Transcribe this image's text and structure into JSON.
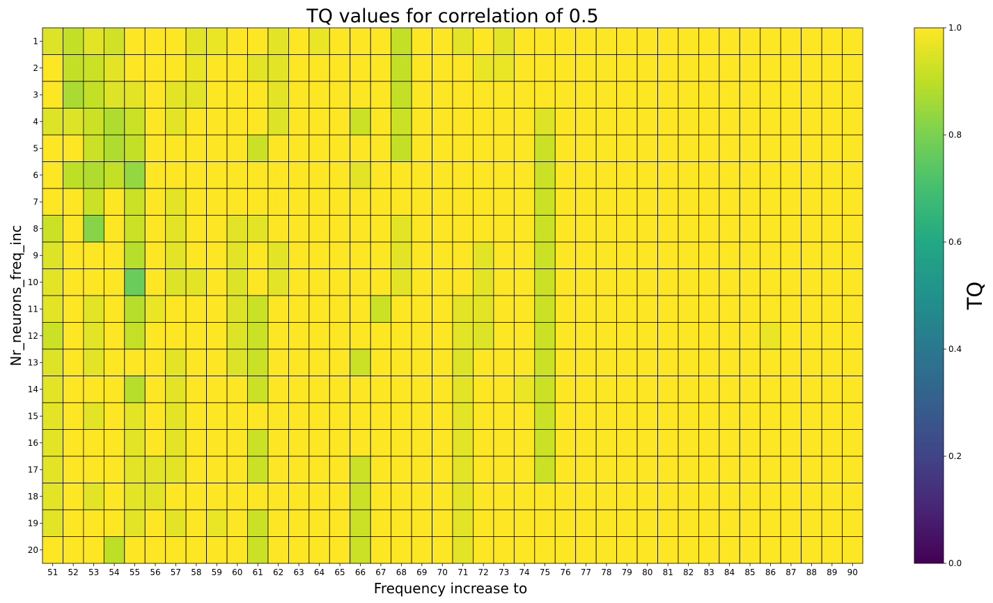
{
  "chart_data": {
    "type": "heatmap",
    "title": "TQ values for correlation of 0.5",
    "xlabel": "Frequency increase to",
    "ylabel": "Nr_neurons_freq_inc",
    "colorbar_label": "TQ",
    "colormap": "viridis",
    "vmin": 0.0,
    "vmax": 1.0,
    "colorbar_ticks": [
      "0.0",
      "0.2",
      "0.4",
      "0.6",
      "0.8",
      "1.0"
    ],
    "x_categories": [
      "51",
      "52",
      "53",
      "54",
      "55",
      "56",
      "57",
      "58",
      "59",
      "60",
      "61",
      "62",
      "63",
      "64",
      "65",
      "66",
      "67",
      "68",
      "69",
      "70",
      "71",
      "72",
      "73",
      "74",
      "75",
      "76",
      "77",
      "78",
      "79",
      "80",
      "81",
      "82",
      "83",
      "84",
      "85",
      "86",
      "87",
      "88",
      "89",
      "90"
    ],
    "y_categories": [
      "1",
      "2",
      "3",
      "4",
      "5",
      "6",
      "7",
      "8",
      "9",
      "10",
      "11",
      "12",
      "13",
      "14",
      "15",
      "16",
      "17",
      "18",
      "19",
      "20"
    ],
    "values": [
      [
        0.95,
        0.91,
        0.96,
        0.93,
        1,
        1,
        1,
        0.96,
        0.97,
        1,
        1,
        0.96,
        1,
        0.97,
        1,
        1,
        1,
        0.91,
        1,
        1,
        0.96,
        1,
        0.96,
        1,
        1,
        1,
        1,
        1,
        1,
        1,
        1,
        1,
        1,
        1,
        1,
        1,
        1,
        1,
        1,
        1
      ],
      [
        1,
        0.91,
        0.92,
        0.96,
        1,
        1,
        1,
        0.97,
        1,
        1,
        0.96,
        0.96,
        1,
        1,
        1,
        1,
        1,
        0.91,
        1,
        1,
        1,
        0.97,
        0.97,
        1,
        1,
        1,
        1,
        1,
        1,
        1,
        1,
        1,
        1,
        1,
        1,
        1,
        1,
        1,
        1,
        1
      ],
      [
        1,
        0.87,
        0.91,
        0.95,
        0.96,
        1,
        0.96,
        0.96,
        1,
        1,
        1,
        0.96,
        1,
        1,
        1,
        1,
        1,
        0.91,
        1,
        1,
        1,
        1,
        1,
        1,
        1,
        1,
        1,
        1,
        1,
        1,
        1,
        1,
        1,
        1,
        1,
        1,
        1,
        1,
        1,
        1
      ],
      [
        0.95,
        0.95,
        0.92,
        0.88,
        0.92,
        1,
        0.96,
        1,
        1,
        1,
        1,
        0.95,
        1,
        1,
        1,
        0.92,
        1,
        0.92,
        1,
        1,
        1,
        1,
        1,
        1,
        0.95,
        1,
        1,
        1,
        1,
        1,
        1,
        1,
        1,
        1,
        1,
        1,
        1,
        1,
        1,
        1
      ],
      [
        1,
        1,
        0.92,
        0.88,
        0.91,
        1,
        1,
        1,
        1,
        1,
        0.92,
        1,
        1,
        1,
        1,
        1,
        1,
        0.91,
        1,
        1,
        1,
        1,
        1,
        1,
        0.92,
        1,
        1,
        1,
        1,
        1,
        1,
        1,
        1,
        1,
        1,
        1,
        1,
        1,
        1,
        1
      ],
      [
        1,
        0.9,
        0.88,
        0.91,
        0.84,
        1,
        1,
        1,
        1,
        1,
        1,
        1,
        1,
        1,
        1,
        0.96,
        1,
        1,
        1,
        1,
        1,
        1,
        1,
        1,
        0.92,
        1,
        1,
        1,
        1,
        1,
        1,
        1,
        1,
        1,
        1,
        1,
        1,
        1,
        1,
        1
      ],
      [
        1,
        1,
        0.92,
        1,
        0.92,
        1,
        0.96,
        1,
        1,
        1,
        1,
        1,
        1,
        1,
        1,
        1,
        1,
        1,
        1,
        1,
        1,
        1,
        1,
        1,
        0.92,
        1,
        1,
        1,
        1,
        1,
        1,
        1,
        1,
        1,
        1,
        1,
        1,
        1,
        1,
        1
      ],
      [
        0.92,
        1,
        0.82,
        1,
        0.92,
        1,
        0.96,
        1,
        1,
        0.96,
        0.96,
        1,
        1,
        1,
        1,
        1,
        1,
        0.96,
        1,
        1,
        1,
        1,
        1,
        1,
        0.92,
        1,
        1,
        1,
        1,
        1,
        1,
        1,
        1,
        1,
        1,
        1,
        1,
        1,
        1,
        1
      ],
      [
        0.95,
        1,
        1,
        1,
        0.89,
        1,
        0.96,
        1,
        1,
        0.96,
        1,
        0.96,
        1,
        1,
        1,
        1,
        1,
        0.96,
        1,
        1,
        1,
        0.96,
        1,
        1,
        0.92,
        1,
        1,
        1,
        1,
        1,
        1,
        1,
        1,
        1,
        1,
        1,
        1,
        1,
        1,
        1
      ],
      [
        0.96,
        1,
        1,
        1,
        0.77,
        1,
        0.95,
        0.96,
        1,
        0.95,
        1,
        0.96,
        1,
        1,
        1,
        1,
        1,
        0.96,
        1,
        1,
        1,
        0.96,
        1,
        1,
        0.92,
        1,
        1,
        1,
        1,
        1,
        1,
        1,
        1,
        1,
        1,
        1,
        1,
        1,
        1,
        1
      ],
      [
        0.96,
        1,
        0.96,
        1,
        0.89,
        0.97,
        1,
        1,
        1,
        0.95,
        0.92,
        1,
        1,
        1,
        1,
        1,
        0.92,
        1,
        1,
        1,
        0.96,
        0.96,
        1,
        1,
        0.92,
        1,
        1,
        1,
        1,
        1,
        1,
        1,
        1,
        1,
        1,
        1,
        1,
        1,
        1,
        1
      ],
      [
        0.92,
        1,
        0.96,
        1,
        0.91,
        1,
        1,
        1,
        1,
        0.95,
        0.92,
        1,
        1,
        1,
        1,
        1,
        1,
        1,
        1,
        1,
        0.96,
        0.95,
        1,
        1,
        0.92,
        1,
        1,
        1,
        1,
        1,
        1,
        1,
        1,
        1,
        1,
        0.97,
        1,
        1,
        1,
        1
      ],
      [
        0.95,
        1,
        0.96,
        1,
        1,
        1,
        0.96,
        1,
        1,
        0.95,
        0.92,
        1,
        1,
        1,
        1,
        0.92,
        1,
        1,
        1,
        1,
        0.95,
        1,
        1,
        1,
        0.92,
        1,
        1,
        1,
        1,
        1,
        1,
        1,
        1,
        1,
        1,
        1,
        1,
        1,
        1,
        1
      ],
      [
        0.96,
        1,
        1,
        1,
        0.89,
        1,
        0.96,
        1,
        1,
        1,
        0.92,
        1,
        1,
        1,
        1,
        1,
        1,
        1,
        1,
        1,
        0.96,
        1,
        1,
        0.97,
        0.92,
        1,
        1,
        1,
        1,
        1,
        1,
        1,
        1,
        1,
        1,
        1,
        1,
        1,
        1,
        1
      ],
      [
        0.96,
        1,
        0.96,
        1,
        0.96,
        1,
        0.96,
        1,
        1,
        1,
        1,
        1,
        1,
        1,
        1,
        1,
        1,
        1,
        1,
        1,
        0.96,
        1,
        1,
        1,
        0.92,
        1,
        1,
        1,
        1,
        1,
        1,
        1,
        1,
        1,
        1,
        1,
        1,
        1,
        1,
        1
      ],
      [
        0.96,
        1,
        1,
        1,
        0.96,
        1,
        0.96,
        1,
        1,
        1,
        0.92,
        1,
        1,
        1,
        1,
        1,
        1,
        1,
        1,
        1,
        0.96,
        1,
        1,
        1,
        0.92,
        1,
        1,
        1,
        1,
        1,
        1,
        1,
        1,
        1,
        1,
        1,
        1,
        1,
        1,
        1
      ],
      [
        0.96,
        1,
        1,
        1,
        0.96,
        0.96,
        0.96,
        1,
        1,
        1,
        0.92,
        1,
        1,
        1,
        1,
        0.92,
        1,
        1,
        1,
        1,
        0.96,
        1,
        1,
        1,
        0.92,
        1,
        1,
        1,
        1,
        1,
        1,
        1,
        1,
        1,
        1,
        1,
        1,
        1,
        1,
        1
      ],
      [
        0.96,
        1,
        0.96,
        1,
        0.96,
        0.96,
        1,
        1,
        1,
        1,
        1,
        1,
        1,
        1,
        1,
        0.92,
        1,
        1,
        1,
        1,
        0.96,
        1,
        1,
        1,
        1,
        1,
        1,
        1,
        1,
        1,
        1,
        1,
        1,
        1,
        1,
        1,
        1,
        1,
        1,
        1
      ],
      [
        0.96,
        1,
        1,
        1,
        0.96,
        1,
        0.96,
        1,
        0.97,
        1,
        0.92,
        1,
        1,
        1,
        1,
        0.92,
        1,
        1,
        1,
        1,
        0.96,
        1,
        1,
        1,
        1,
        1,
        1,
        1,
        1,
        1,
        1,
        1,
        1,
        1,
        1,
        1,
        1,
        1,
        1,
        1
      ],
      [
        1,
        1,
        1,
        0.9,
        1,
        1,
        1,
        1,
        1,
        1,
        0.92,
        1,
        1,
        1,
        1,
        0.92,
        1,
        1,
        1,
        1,
        0.96,
        1,
        1,
        1,
        1,
        1,
        1,
        1,
        1,
        1,
        1,
        1,
        1,
        1,
        1,
        1,
        1,
        1,
        1,
        1
      ]
    ]
  }
}
